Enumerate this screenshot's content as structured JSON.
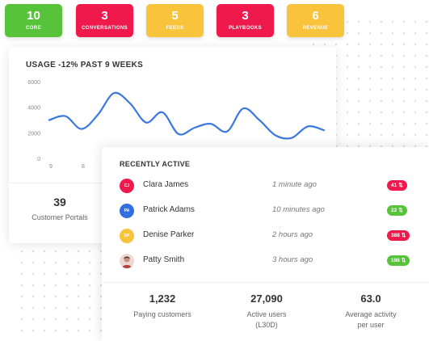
{
  "stats": [
    {
      "value": "10",
      "label": "CORE",
      "color": "#57c33a"
    },
    {
      "value": "3",
      "label": "CONVERSATIONS",
      "color": "#f0194b"
    },
    {
      "value": "5",
      "label": "FEEDS",
      "color": "#f9c33c"
    },
    {
      "value": "3",
      "label": "PLAYBOOKS",
      "color": "#f0194b"
    },
    {
      "value": "6",
      "label": "REVENUE",
      "color": "#f9c33c"
    }
  ],
  "usage": {
    "title": "USAGE -12% PAST 9 WEEKS"
  },
  "chart_data": {
    "type": "line",
    "title": "USAGE -12% PAST 9 WEEKS",
    "ylim": [
      0,
      6000
    ],
    "yticks": [
      "6000",
      "4000",
      "2000",
      "0"
    ],
    "x_tick_labels": [
      "9",
      "8"
    ],
    "series": [
      {
        "color": "#3a78e0",
        "x": [
          0,
          0.5,
          1,
          1.5,
          2,
          2.5,
          3,
          3.5,
          4,
          4.5,
          5,
          5.5,
          6,
          6.5,
          7,
          7.5,
          8,
          8.5
        ],
        "values": [
          3000,
          3300,
          2300,
          3400,
          5100,
          4300,
          2800,
          3600,
          1900,
          2400,
          2700,
          2100,
          3900,
          3000,
          1800,
          1600,
          2500,
          2200
        ]
      }
    ]
  },
  "portals": {
    "value": "39",
    "label": "Customer Portals"
  },
  "recent": {
    "title": "RECENTLY ACTIVE",
    "rows": [
      {
        "initials": "CJ",
        "name": "Clara James",
        "time": "1 minute ago",
        "badge": "41",
        "avatar_color": "#f0194b",
        "badge_color": "#f0194b"
      },
      {
        "initials": "PA",
        "name": "Patrick Adams",
        "time": "10 minutes ago",
        "badge": "22",
        "avatar_color": "#2f6fe0",
        "badge_color": "#57c33a"
      },
      {
        "initials": "DP",
        "name": "Denise Parker",
        "time": "2 hours ago",
        "badge": "388",
        "avatar_color": "#f9c33c",
        "badge_color": "#f0194b"
      },
      {
        "initials": "",
        "name": "Patty Smith",
        "time": "3 hours ago",
        "badge": "196",
        "avatar_color": "#ecd9d3",
        "badge_color": "#57c33a"
      }
    ]
  },
  "metrics": [
    {
      "value": "1,232",
      "label": "Paying customers"
    },
    {
      "value": "27,090",
      "label": "Active users\n(L30D)"
    },
    {
      "value": "63.0",
      "label": "Average activity\nper user"
    }
  ]
}
